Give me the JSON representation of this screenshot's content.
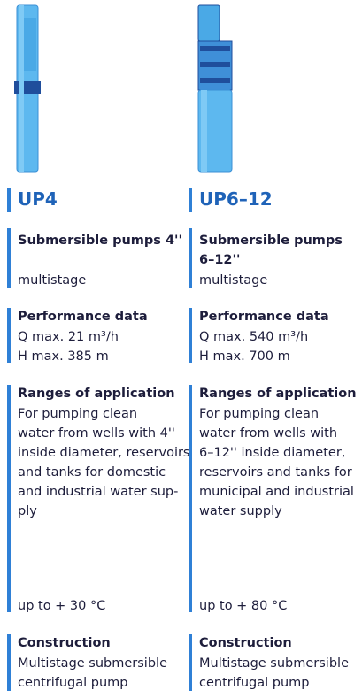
{
  "columns": [
    {
      "title": "UP4",
      "subtitle": [
        "Submersible pumps 4''"
      ],
      "variant": "multistage",
      "performance": {
        "heading": "Performance data",
        "lines": [
          "Q max. 21 m³/h",
          "H max. 385 m"
        ]
      },
      "application": {
        "heading": "Ranges of application",
        "lines": [
          "For pumping clean",
          "water from wells with 4''",
          "inside diameter, reservoirs",
          "and tanks for domestic",
          "and industrial water sup-",
          "ply"
        ],
        "temperature": "up to + 30 °C"
      },
      "construction": {
        "heading": "Construction",
        "lines": [
          "Multistage submersible",
          "centrifugal pump"
        ]
      }
    },
    {
      "title": "UP6–12",
      "subtitle": [
        "Submersible pumps",
        "6–12''"
      ],
      "variant": "multistage",
      "performance": {
        "heading": "Performance data",
        "lines": [
          "Q max. 540 m³/h",
          "H max. 700 m"
        ]
      },
      "application": {
        "heading": "Ranges of application",
        "lines": [
          "For pumping clean",
          "water from wells with",
          "6–12'' inside diameter,",
          "reservoirs and tanks for",
          "municipal and industrial",
          "water supply"
        ],
        "temperature": "up to + 80 °C"
      },
      "construction": {
        "heading": "Construction",
        "lines": [
          "Multistage submersible",
          "centrifugal pump"
        ]
      }
    }
  ]
}
